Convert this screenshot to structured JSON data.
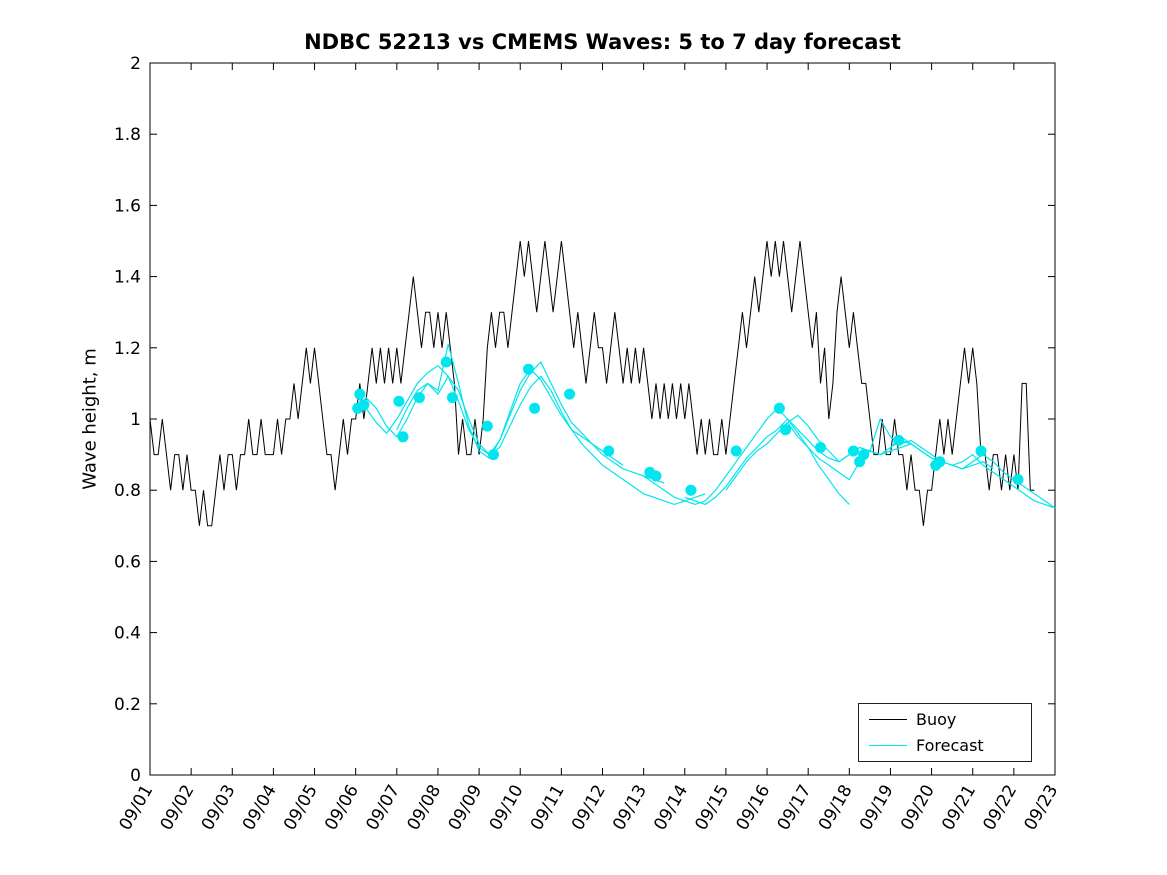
{
  "chart_data": {
    "type": "line",
    "title": "NDBC 52213 vs CMEMS Waves: 5 to 7 day forecast",
    "xlabel": "",
    "ylabel": "Wave height, m",
    "xlim": [
      1,
      23
    ],
    "ylim": [
      0,
      2
    ],
    "grid": false,
    "legend_position": "bottom-right",
    "x_ticks": {
      "positions": [
        1,
        2,
        3,
        4,
        5,
        6,
        7,
        8,
        9,
        10,
        11,
        12,
        13,
        14,
        15,
        16,
        17,
        18,
        19,
        20,
        21,
        22,
        23
      ],
      "labels": [
        "09/01",
        "09/02",
        "09/03",
        "09/04",
        "09/05",
        "09/06",
        "09/07",
        "09/08",
        "09/09",
        "09/10",
        "09/11",
        "09/12",
        "09/13",
        "09/14",
        "09/15",
        "09/16",
        "09/17",
        "09/18",
        "09/19",
        "09/20",
        "09/21",
        "09/22",
        "09/23"
      ]
    },
    "y_ticks": {
      "positions": [
        0,
        0.2,
        0.4,
        0.6,
        0.8,
        1,
        1.2,
        1.4,
        1.6,
        1.8,
        2
      ],
      "labels": [
        "0",
        "0.2",
        "0.4",
        "0.6",
        "0.8",
        "1",
        "1.2",
        "1.4",
        "1.6",
        "1.8",
        "2"
      ]
    },
    "buoy": {
      "label": "Buoy",
      "color": "#000000",
      "x0": 1.0,
      "dx": 0.1,
      "values": [
        1.0,
        0.9,
        0.9,
        1.0,
        0.9,
        0.8,
        0.9,
        0.9,
        0.8,
        0.9,
        0.8,
        0.8,
        0.7,
        0.8,
        0.7,
        0.7,
        0.8,
        0.9,
        0.8,
        0.9,
        0.9,
        0.8,
        0.9,
        0.9,
        1.0,
        0.9,
        0.9,
        1.0,
        0.9,
        0.9,
        0.9,
        1.0,
        0.9,
        1.0,
        1.0,
        1.1,
        1.0,
        1.1,
        1.2,
        1.1,
        1.2,
        1.1,
        1.0,
        0.9,
        0.9,
        0.8,
        0.9,
        1.0,
        0.9,
        1.0,
        1.0,
        1.1,
        1.0,
        1.1,
        1.2,
        1.1,
        1.2,
        1.1,
        1.2,
        1.1,
        1.2,
        1.1,
        1.2,
        1.3,
        1.4,
        1.3,
        1.2,
        1.3,
        1.3,
        1.2,
        1.3,
        1.2,
        1.3,
        1.2,
        1.1,
        0.9,
        1.0,
        0.9,
        0.9,
        1.0,
        0.9,
        1.0,
        1.2,
        1.3,
        1.2,
        1.3,
        1.3,
        1.2,
        1.3,
        1.4,
        1.5,
        1.4,
        1.5,
        1.4,
        1.3,
        1.4,
        1.5,
        1.4,
        1.3,
        1.4,
        1.5,
        1.4,
        1.3,
        1.2,
        1.3,
        1.2,
        1.1,
        1.2,
        1.3,
        1.2,
        1.2,
        1.1,
        1.2,
        1.3,
        1.2,
        1.1,
        1.2,
        1.1,
        1.2,
        1.1,
        1.2,
        1.1,
        1.0,
        1.1,
        1.0,
        1.1,
        1.0,
        1.1,
        1.0,
        1.1,
        1.0,
        1.1,
        1.0,
        0.9,
        1.0,
        0.9,
        1.0,
        0.9,
        0.9,
        1.0,
        0.9,
        1.0,
        1.1,
        1.2,
        1.3,
        1.2,
        1.3,
        1.4,
        1.3,
        1.4,
        1.5,
        1.4,
        1.5,
        1.4,
        1.5,
        1.4,
        1.3,
        1.4,
        1.5,
        1.4,
        1.3,
        1.2,
        1.3,
        1.1,
        1.2,
        1.0,
        1.1,
        1.3,
        1.4,
        1.3,
        1.2,
        1.3,
        1.2,
        1.1,
        1.1,
        1.0,
        0.9,
        0.9,
        1.0,
        0.9,
        0.9,
        1.0,
        0.9,
        0.9,
        0.8,
        0.9,
        0.8,
        0.8,
        0.7,
        0.8,
        0.8,
        0.9,
        1.0,
        0.9,
        1.0,
        0.9,
        1.0,
        1.1,
        1.2,
        1.1,
        1.2,
        1.1,
        0.9,
        0.9,
        0.8,
        0.9,
        0.9,
        0.8,
        0.9,
        0.8,
        0.9,
        0.8,
        1.1,
        1.1,
        0.8,
        0.8
      ]
    },
    "forecast": {
      "label": "Forecast",
      "color": "#00e5ee",
      "series": [
        {
          "x0": 6.0,
          "dx": 0.25,
          "values": [
            1.02,
            1.06,
            1.03,
            0.98,
            0.95,
            1.0,
            1.06,
            1.1,
            1.08,
            1.21,
            1.1,
            0.98,
            0.91,
            0.89,
            0.94,
            1.02,
            1.1,
            1.14,
            1.11,
            1.06,
            1.01,
            0.97,
            0.95,
            0.93,
            0.91,
            0.89,
            0.87
          ]
        },
        {
          "x0": 6.0,
          "dx": 0.25,
          "values": [
            1.07,
            1.03,
            0.99,
            0.96,
            1.0,
            1.05,
            1.1,
            1.13,
            1.15,
            1.12,
            1.05,
            0.97,
            0.92,
            0.9,
            0.94,
            1.01,
            1.08,
            1.13,
            1.16,
            1.1,
            1.04,
            0.99,
            0.96,
            0.93,
            0.9,
            0.88,
            0.86,
            0.85,
            0.84,
            0.83,
            0.82
          ]
        },
        {
          "x0": 7.0,
          "dx": 0.25,
          "values": [
            0.97,
            1.03,
            1.08,
            1.1,
            1.07,
            1.12,
            1.08,
            1.0,
            0.93,
            0.9,
            0.92,
            0.98,
            1.04,
            1.09,
            1.12,
            1.08,
            1.02,
            0.97,
            0.93,
            0.9,
            0.87,
            0.85,
            0.83,
            0.81,
            0.79,
            0.78,
            0.77,
            0.76,
            0.77,
            0.78,
            0.79
          ]
        },
        {
          "x0": 13.0,
          "dx": 0.25,
          "values": [
            0.84,
            0.82,
            0.8,
            0.78,
            0.77,
            0.76,
            0.77,
            0.8,
            0.84,
            0.88,
            0.92,
            0.96,
            1.0,
            1.03,
            1.0,
            0.96,
            0.92,
            0.87,
            0.83,
            0.79,
            0.76
          ]
        },
        {
          "x0": 14.0,
          "dx": 0.25,
          "values": [
            0.78,
            0.77,
            0.76,
            0.78,
            0.81,
            0.85,
            0.89,
            0.92,
            0.95,
            0.97,
            1.0,
            0.97,
            0.94,
            0.91,
            0.89,
            0.88,
            0.9,
            0.92,
            0.91,
            0.9,
            0.91,
            0.92,
            0.93
          ]
        },
        {
          "x0": 15.0,
          "dx": 0.25,
          "values": [
            0.8,
            0.84,
            0.88,
            0.91,
            0.93,
            0.96,
            0.99,
            1.01,
            0.98,
            0.94,
            0.91,
            0.88,
            0.9,
            0.92,
            0.91,
            0.9,
            0.92,
            0.95,
            0.93,
            0.91,
            0.89,
            0.88,
            0.87,
            0.86,
            0.87,
            0.88,
            0.86
          ]
        },
        {
          "x0": 16.5,
          "dx": 0.25,
          "values": [
            0.99,
            0.95,
            0.92,
            0.89,
            0.87,
            0.85,
            0.83,
            0.88,
            0.91,
            1.0,
            0.95,
            0.93,
            0.94,
            0.92,
            0.9,
            0.88,
            0.87,
            0.88,
            0.9,
            0.87,
            0.85,
            0.83,
            0.81,
            0.79,
            0.77,
            0.76,
            0.75
          ]
        },
        {
          "x0": 19.0,
          "dx": 0.25,
          "values": [
            0.92,
            0.94,
            0.93,
            0.91,
            0.89,
            0.88,
            0.87,
            0.86,
            0.88,
            0.9,
            0.88,
            0.85,
            0.83,
            0.81,
            0.79,
            0.77,
            0.75
          ]
        }
      ],
      "markers": [
        [
          6.05,
          1.03
        ],
        [
          6.1,
          1.07
        ],
        [
          6.2,
          1.04
        ],
        [
          7.05,
          1.05
        ],
        [
          7.15,
          0.95
        ],
        [
          7.55,
          1.06
        ],
        [
          8.2,
          1.16
        ],
        [
          8.35,
          1.06
        ],
        [
          9.2,
          0.98
        ],
        [
          9.35,
          0.9
        ],
        [
          10.2,
          1.14
        ],
        [
          10.35,
          1.03
        ],
        [
          11.2,
          1.07
        ],
        [
          12.15,
          0.91
        ],
        [
          13.15,
          0.85
        ],
        [
          13.3,
          0.84
        ],
        [
          14.15,
          0.8
        ],
        [
          15.25,
          0.91
        ],
        [
          16.3,
          1.03
        ],
        [
          16.45,
          0.97
        ],
        [
          17.3,
          0.92
        ],
        [
          18.1,
          0.91
        ],
        [
          18.25,
          0.88
        ],
        [
          18.35,
          0.9
        ],
        [
          19.2,
          0.94
        ],
        [
          20.1,
          0.87
        ],
        [
          20.2,
          0.88
        ],
        [
          21.2,
          0.91
        ],
        [
          22.1,
          0.83
        ]
      ]
    }
  }
}
